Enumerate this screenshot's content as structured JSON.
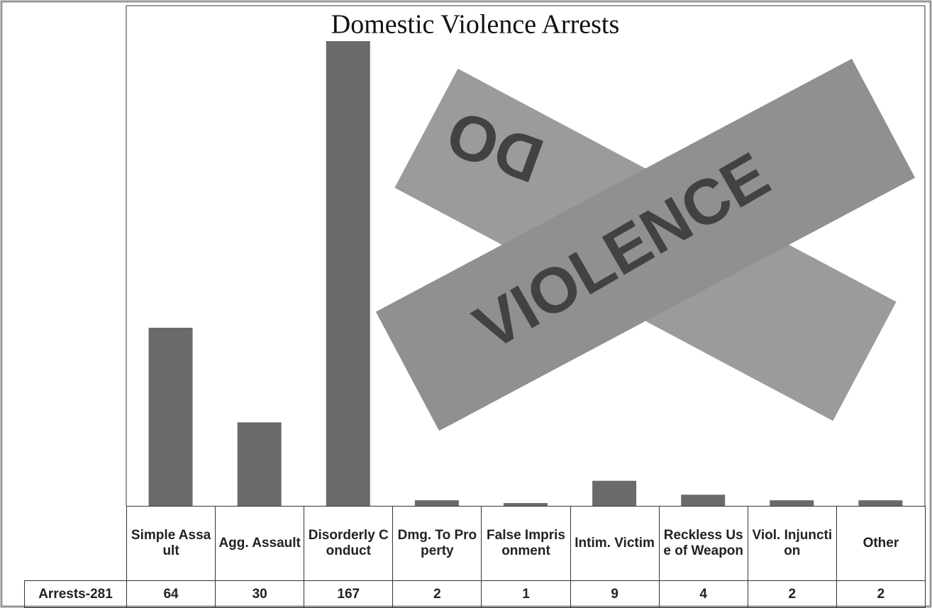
{
  "chart_data": {
    "type": "bar",
    "title": "Domestic Violence Arrests",
    "categories": [
      "Simple Assault",
      "Agg. Assault",
      "Disorderly Conduct",
      "Dmg. To Property",
      "False Imprisonment",
      "Intim. Victim",
      "Reckless Use of Weapon",
      "Viol. Injunction",
      "Other"
    ],
    "series": [
      {
        "name": "Arrests-281",
        "color": "#6a6a6a",
        "values": [
          64,
          30,
          167,
          2,
          1,
          9,
          4,
          2,
          2
        ]
      }
    ],
    "annotations": [
      "DO",
      "VIOLENCE"
    ]
  }
}
